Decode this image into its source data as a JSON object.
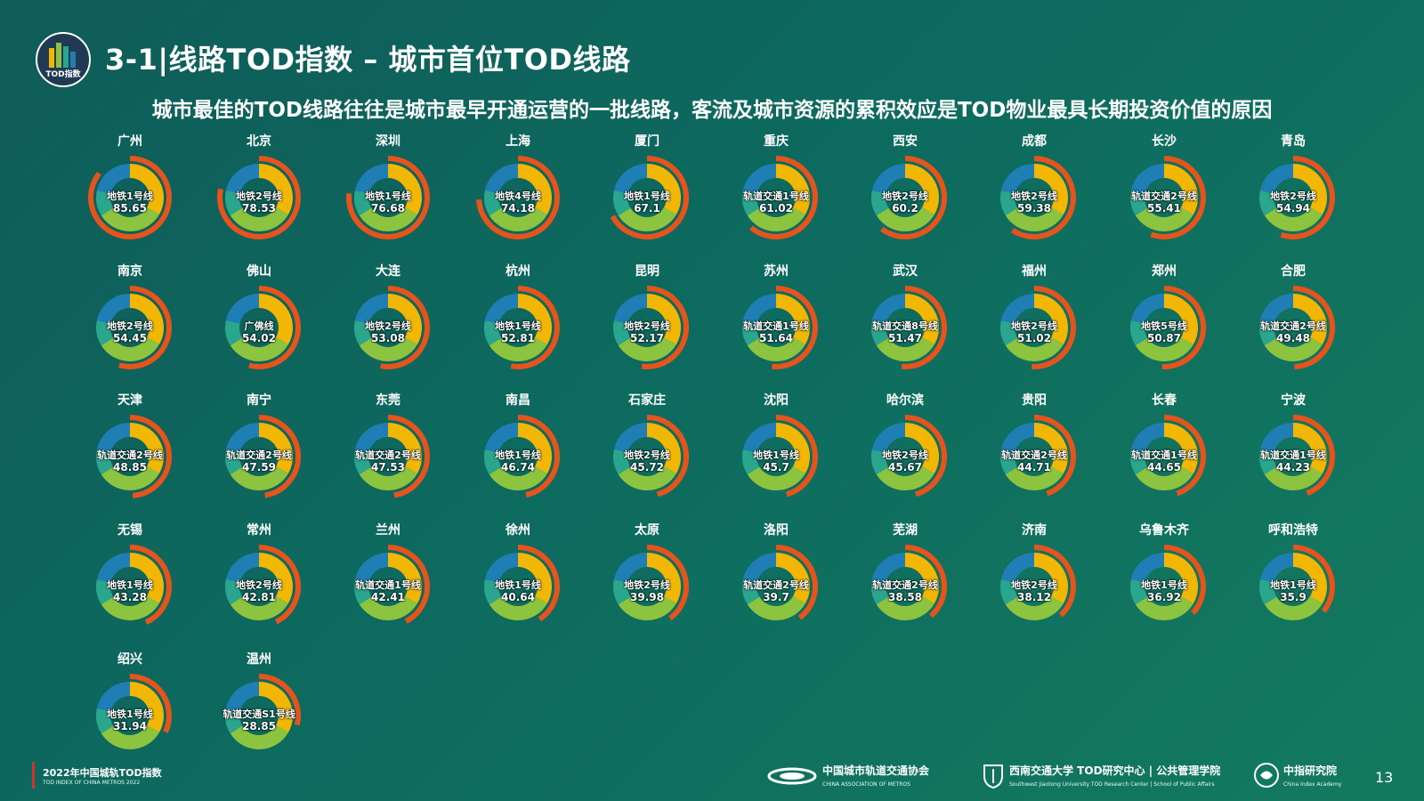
{
  "header": {
    "title": "3-1|线路TOD指数 – 城市首位TOD线路",
    "subtitle": "城市最佳的TOD线路往往是城市最早开通运营的一批线路，客流及城市资源的累积效应是TOD物业最具长期投资价值的原因",
    "logo_text": "TOD指数"
  },
  "colors": {
    "blue": "#1f7fb4",
    "yellow": "#f2b705",
    "green": "#8cc43f",
    "teal": "#2aa58e",
    "orange": "#e5541d",
    "ring_bg": "#0d5a52"
  },
  "chart_data": {
    "type": "donut",
    "max_score": 100,
    "items": [
      {
        "city": "广州",
        "line": "地铁1号线",
        "score": "85.65"
      },
      {
        "city": "北京",
        "line": "地铁2号线",
        "score": "78.53"
      },
      {
        "city": "深圳",
        "line": "地铁1号线",
        "score": "76.68"
      },
      {
        "city": "上海",
        "line": "地铁4号线",
        "score": "74.18"
      },
      {
        "city": "厦门",
        "line": "地铁1号线",
        "score": "67.1"
      },
      {
        "city": "重庆",
        "line": "轨道交通1号线",
        "score": "61.02"
      },
      {
        "city": "西安",
        "line": "地铁2号线",
        "score": "60.2"
      },
      {
        "city": "成都",
        "line": "地铁2号线",
        "score": "59.38"
      },
      {
        "city": "长沙",
        "line": "轨道交通2号线",
        "score": "55.41"
      },
      {
        "city": "青岛",
        "line": "地铁2号线",
        "score": "54.94"
      },
      {
        "city": "南京",
        "line": "地铁2号线",
        "score": "54.45"
      },
      {
        "city": "佛山",
        "line": "广佛线",
        "score": "54.02"
      },
      {
        "city": "大连",
        "line": "地铁2号线",
        "score": "53.08"
      },
      {
        "city": "杭州",
        "line": "地铁1号线",
        "score": "52.81"
      },
      {
        "city": "昆明",
        "line": "地铁2号线",
        "score": "52.17"
      },
      {
        "city": "苏州",
        "line": "轨道交通1号线",
        "score": "51.64"
      },
      {
        "city": "武汉",
        "line": "轨道交通8号线",
        "score": "51.47"
      },
      {
        "city": "福州",
        "line": "地铁2号线",
        "score": "51.02"
      },
      {
        "city": "郑州",
        "line": "地铁5号线",
        "score": "50.87"
      },
      {
        "city": "合肥",
        "line": "轨道交通2号线",
        "score": "49.48"
      },
      {
        "city": "天津",
        "line": "轨道交通2号线",
        "score": "48.85"
      },
      {
        "city": "南宁",
        "line": "轨道交通2号线",
        "score": "47.59"
      },
      {
        "city": "东莞",
        "line": "轨道交通2号线",
        "score": "47.53"
      },
      {
        "city": "南昌",
        "line": "地铁1号线",
        "score": "46.74"
      },
      {
        "city": "石家庄",
        "line": "地铁2号线",
        "score": "45.72"
      },
      {
        "city": "沈阳",
        "line": "地铁1号线",
        "score": "45.7"
      },
      {
        "city": "哈尔滨",
        "line": "地铁2号线",
        "score": "45.67"
      },
      {
        "city": "贵阳",
        "line": "轨道交通2号线",
        "score": "44.71"
      },
      {
        "city": "长春",
        "line": "轨道交通1号线",
        "score": "44.65"
      },
      {
        "city": "宁波",
        "line": "轨道交通1号线",
        "score": "44.23"
      },
      {
        "city": "无锡",
        "line": "地铁1号线",
        "score": "43.28"
      },
      {
        "city": "常州",
        "line": "地铁2号线",
        "score": "42.81"
      },
      {
        "city": "兰州",
        "line": "轨道交通1号线",
        "score": "42.41"
      },
      {
        "city": "徐州",
        "line": "地铁1号线",
        "score": "40.64"
      },
      {
        "city": "太原",
        "line": "地铁2号线",
        "score": "39.98"
      },
      {
        "city": "洛阳",
        "line": "轨道交通2号线",
        "score": "39.7"
      },
      {
        "city": "芜湖",
        "line": "轨道交通2号线",
        "score": "38.58"
      },
      {
        "city": "济南",
        "line": "地铁2号线",
        "score": "38.12"
      },
      {
        "city": "乌鲁木齐",
        "line": "地铁1号线",
        "score": "36.92"
      },
      {
        "city": "呼和浩特",
        "line": "地铁1号线",
        "score": "35.9"
      },
      {
        "city": "绍兴",
        "line": "地铁1号线",
        "score": "31.94"
      },
      {
        "city": "温州",
        "line": "轨道交通S1号线",
        "score": "28.85"
      }
    ]
  },
  "footer": {
    "title": "2022年中国城轨TOD指数",
    "subtitle": "TOD INDEX OF CHINA METROS 2022",
    "partners": [
      {
        "name": "中国城市轨道交通协会",
        "sub": "CHINA ASSOCIATION OF METROS"
      },
      {
        "name": "西南交通大学  TOD研究中心 | 公共管理学院",
        "sub": "Southwest Jiaotong University  TOD Research Center | School of Public Affairs"
      },
      {
        "name": "中指研究院",
        "sub": "China Index Academy"
      }
    ],
    "page_number": "13"
  }
}
